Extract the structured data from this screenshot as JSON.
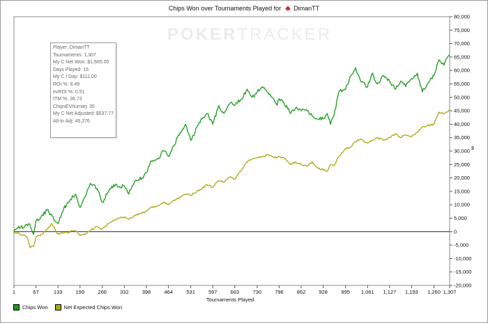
{
  "chart_data": {
    "type": "line",
    "title": "Chips Won over Tournaments Played for",
    "player_name": "DimanTT",
    "xlabel": "Tournaments Played",
    "ylabel": "$",
    "x_ticks": [
      "1",
      "67",
      "133",
      "199",
      "266",
      "332",
      "398",
      "464",
      "531",
      "597",
      "663",
      "730",
      "796",
      "862",
      "928",
      "995",
      "1,061",
      "1,127",
      "1,193",
      "1,260",
      "1,307"
    ],
    "y_ticks": [
      "80,000",
      "75,000",
      "70,000",
      "65,000",
      "60,000",
      "55,000",
      "50,000",
      "45,000",
      "40,000",
      "35,000",
      "30,000",
      "25,000",
      "20,000",
      "15,000",
      "10,000",
      "5,000",
      "0",
      "-5,000",
      "-10,000",
      "-15,000",
      "-20,000"
    ],
    "xlim": [
      1,
      1307
    ],
    "ylim": [
      -20000,
      80000
    ],
    "grid": false,
    "legend_position": "bottom-left",
    "series": [
      {
        "name": "Chips Won",
        "color": "#1a9a1a",
        "x": [
          1,
          15,
          30,
          45,
          60,
          67,
          80,
          100,
          115,
          133,
          150,
          170,
          185,
          199,
          215,
          230,
          250,
          266,
          280,
          300,
          315,
          332,
          345,
          365,
          385,
          398,
          410,
          430,
          450,
          464,
          480,
          500,
          515,
          531,
          550,
          565,
          580,
          597,
          615,
          630,
          650,
          663,
          680,
          700,
          715,
          730,
          745,
          760,
          775,
          790,
          796,
          810,
          830,
          845,
          862,
          880,
          895,
          910,
          928,
          940,
          950,
          960,
          975,
          995,
          1010,
          1025,
          1040,
          1061,
          1075,
          1090,
          1110,
          1127,
          1145,
          1160,
          1175,
          1193,
          1210,
          1225,
          1240,
          1260,
          1275,
          1290,
          1307
        ],
        "y": [
          0,
          2000,
          1500,
          3000,
          -1000,
          4000,
          5000,
          8000,
          6000,
          3000,
          8500,
          12000,
          14000,
          9000,
          13000,
          18000,
          16000,
          11000,
          14000,
          17500,
          16500,
          17000,
          14000,
          19000,
          20000,
          22000,
          26000,
          27000,
          30000,
          28000,
          32000,
          37000,
          40000,
          34000,
          39000,
          42000,
          44000,
          40000,
          47000,
          44000,
          48000,
          47000,
          49000,
          53000,
          50000,
          52000,
          54000,
          52000,
          50000,
          47000,
          49500,
          48000,
          44000,
          46000,
          45000,
          45000,
          43000,
          42000,
          42000,
          44000,
          40000,
          43000,
          52000,
          53000,
          58000,
          61000,
          56000,
          54000,
          59000,
          55000,
          58000,
          56000,
          53000,
          56000,
          54000,
          57000,
          59000,
          52000,
          55000,
          58000,
          64000,
          62000,
          66000
        ]
      },
      {
        "name": "Net Expected Chips Won",
        "color": "#a8a810",
        "x": [
          1,
          20,
          40,
          50,
          60,
          67,
          80,
          100,
          115,
          133,
          150,
          170,
          185,
          199,
          215,
          230,
          250,
          266,
          280,
          300,
          315,
          332,
          345,
          365,
          385,
          398,
          410,
          430,
          450,
          464,
          480,
          500,
          515,
          531,
          550,
          565,
          580,
          597,
          615,
          630,
          650,
          663,
          680,
          700,
          715,
          730,
          745,
          760,
          775,
          790,
          796,
          810,
          830,
          845,
          862,
          880,
          895,
          910,
          928,
          940,
          950,
          960,
          975,
          995,
          1010,
          1025,
          1040,
          1061,
          1075,
          1090,
          1110,
          1127,
          1145,
          1160,
          1175,
          1193,
          1210,
          1225,
          1240,
          1260,
          1275,
          1290,
          1307
        ],
        "y": [
          0,
          -1000,
          -2000,
          -6000,
          -5500,
          -2000,
          -1500,
          1000,
          3000,
          -1000,
          -500,
          0,
          500,
          -1500,
          -1000,
          500,
          2000,
          1000,
          2500,
          4000,
          5000,
          5500,
          4500,
          6000,
          7000,
          7500,
          9000,
          9500,
          11000,
          10000,
          11500,
          13000,
          14000,
          13500,
          15000,
          16000,
          17500,
          16500,
          19000,
          18500,
          20500,
          19500,
          22500,
          26000,
          27000,
          27500,
          28000,
          28500,
          28000,
          27500,
          28000,
          27500,
          25000,
          26000,
          25000,
          24500,
          26000,
          24000,
          23000,
          22500,
          25000,
          24500,
          28000,
          31000,
          31500,
          33500,
          34500,
          33000,
          34000,
          35000,
          34000,
          35000,
          36500,
          35000,
          36000,
          35500,
          37000,
          39000,
          39500,
          40000,
          44500,
          44000,
          45276
        ]
      }
    ]
  },
  "infobox": {
    "lines": [
      "Player: DimanTT",
      "Tournaments: 1,307",
      "My C Net Won: $1,665.00",
      "Days Played: 15",
      "My C / Day: $111.00",
      "ROI %: 8.49",
      "evROI %: 0.51",
      "ITM %: 36.73",
      "ChipsEV/turniej: 35",
      "My C Net Adjusted: $537.77",
      "All-In Adj: 45,276"
    ]
  },
  "watermark": {
    "part1": "POKER",
    "part2": "TRACKER"
  },
  "colors": {
    "chips_won": "#1a9a1a",
    "net_expected": "#a8a810",
    "spade": "#d42a2a"
  }
}
